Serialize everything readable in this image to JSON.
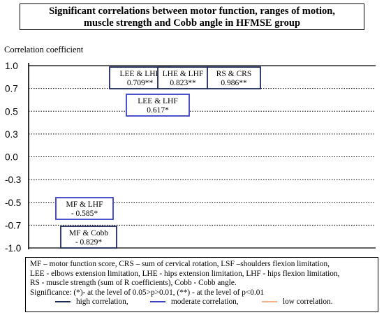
{
  "chart_data": {
    "type": "annotated-scale",
    "title_lines": [
      "Significant correlations between motor function, ranges of motion,",
      "muscle strength and Cobb angle in HFMSE group"
    ],
    "ylabel": "Correlation coefficient",
    "ylim": [
      -1.0,
      1.0
    ],
    "ticks": [
      {
        "value": 1.0,
        "label": "1.0"
      },
      {
        "value": 0.7,
        "label": "0.7"
      },
      {
        "value": 0.5,
        "label": "0.5"
      },
      {
        "value": 0.3,
        "label": "0.3"
      },
      {
        "value": 0.0,
        "label": "0.0"
      },
      {
        "value": -0.3,
        "label": "-0.3"
      },
      {
        "value": -0.5,
        "label": "-0.5"
      },
      {
        "value": -0.7,
        "label": "-0.7"
      },
      {
        "value": -1.0,
        "label": "-1.0"
      }
    ],
    "correlations": [
      {
        "pair": "LEE & LHE",
        "value": 0.709,
        "text": "0.709**",
        "strength": "high"
      },
      {
        "pair": "LHE & LHF",
        "value": 0.823,
        "text": "0.823**",
        "strength": "high"
      },
      {
        "pair": "RS & CRS",
        "value": 0.986,
        "text": "0.986**",
        "strength": "high"
      },
      {
        "pair": "LEE & LHF",
        "value": 0.617,
        "text": "0.617*",
        "strength": "moderate"
      },
      {
        "pair": "MF & LHF",
        "value": -0.585,
        "text": "- 0.585*",
        "strength": "moderate"
      },
      {
        "pair": "MF & Cobb",
        "value": -0.829,
        "text": "- 0.829*",
        "strength": "high"
      }
    ],
    "strength_colors": {
      "high": "#1f2a5c",
      "moderate": "#3b3fc4",
      "low": "#f4b183"
    }
  },
  "legend": {
    "lines": [
      "MF – motor function score, CRS – sum of cervical rotation, LSF –shoulders flexion limitation,",
      "LEE - elbows extension limitation, LHE - hips extension limitation, LHF - hips flexion limitation,",
      "RS - muscle strength (sum of R coefficients), Cobb - Cobb angle.",
      "Significance: (*)- at the level of 0.05>p>0.01, (**) - at the level of p<0.01"
    ],
    "keys": [
      {
        "label": "high correlation,",
        "color": "#1f2a5c"
      },
      {
        "label": "moderate correlation,",
        "color": "#3b3fc4"
      },
      {
        "label": "low correlation.",
        "color": "#f4b183"
      }
    ]
  }
}
